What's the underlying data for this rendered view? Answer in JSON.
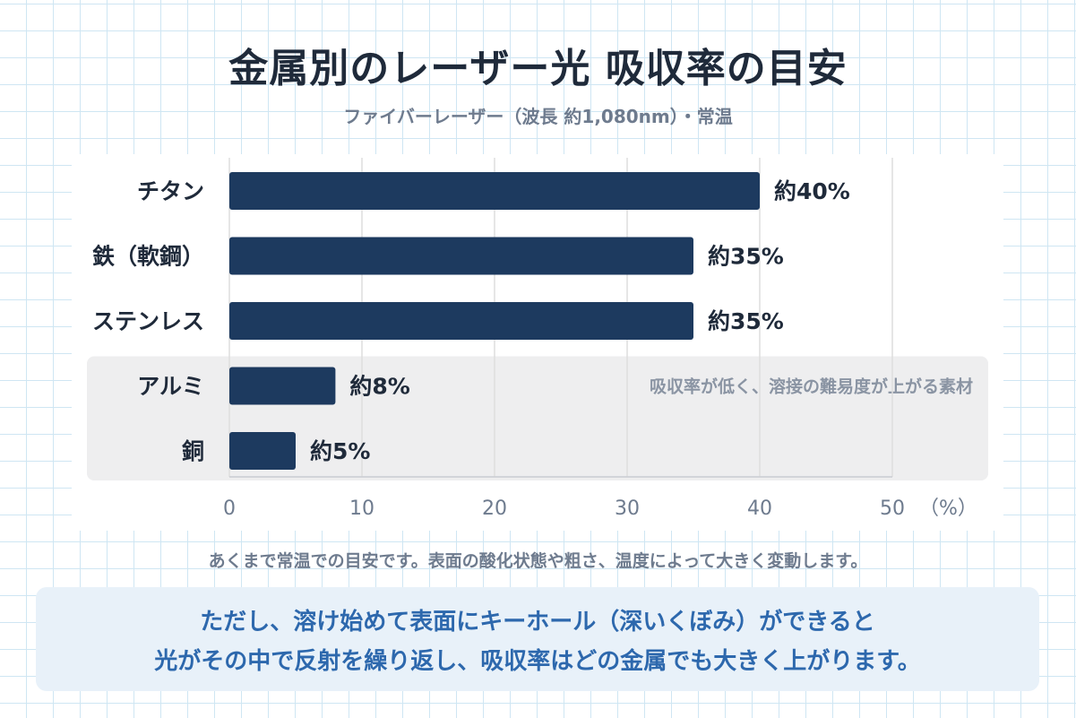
{
  "title": "金属別のレーザー光 吸収率の目安",
  "subtitle": "ファイバーレーザー（波長 約1,080nm）・常温",
  "chart_data": {
    "type": "bar",
    "orientation": "horizontal",
    "categories": [
      "チタン",
      "鉄（軟鋼）",
      "ステンレス",
      "アルミ",
      "銅"
    ],
    "values": [
      40,
      35,
      35,
      8,
      5
    ],
    "value_labels": [
      "約40%",
      "約35%",
      "約35%",
      "約8%",
      "約5%"
    ],
    "xlim": [
      0,
      50
    ],
    "x_ticks": [
      "0",
      "10",
      "20",
      "30",
      "40",
      "50"
    ],
    "x_unit": "（%）",
    "grid": true,
    "highlight": {
      "categories": [
        "アルミ",
        "銅"
      ],
      "label": "吸収率が低く、溶接の難易度が上がる素材"
    },
    "colors": {
      "bar": "#1d3a5f",
      "highlight_bg": "#eeeeef",
      "grid": "#dedede",
      "axis_text": "#6e7b8e",
      "category_text": "#1f2a3a",
      "highlight_text": "#8a94a3"
    }
  },
  "note": "あくまで常温での目安です。表面の酸化状態や粗さ、温度によって大きく変動します。",
  "callout": {
    "line1": "ただし、溶け始めて表面にキーホール（深いくぼみ）ができると",
    "line2": "光がその中で反射を繰り返し、吸収率はどの金属でも大きく上がります。"
  }
}
